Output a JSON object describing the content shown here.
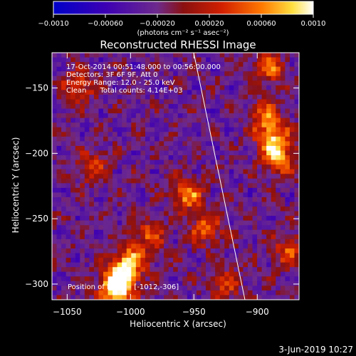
{
  "chart_data": {
    "type": "heatmap",
    "title": "Reconstructed RHESSI Image",
    "xlabel": "Heliocentric X (arcsec)",
    "ylabel": "Heliocentric Y (arcsec)",
    "xlim": [
      -1062,
      -867
    ],
    "ylim": [
      -312,
      -123
    ],
    "x_ticks": [
      -1050,
      -1000,
      -950,
      -900
    ],
    "y_ticks": [
      -150,
      -200,
      -250,
      -300
    ],
    "x_tick_labels": [
      "−1050",
      "−1000",
      "−950",
      "−900"
    ],
    "y_tick_labels": [
      "−150",
      "−200",
      "−250",
      "−300"
    ],
    "colorbar": {
      "min": -0.001,
      "max": 0.001,
      "ticks": [
        -0.001,
        -0.0006,
        -0.0002,
        0.0002,
        0.0006,
        0.001
      ],
      "tick_labels": [
        "−0.0010",
        "−0.00060",
        "−0.00020",
        "0.00020",
        "0.00060",
        "0.0010"
      ],
      "unit_label": "(photons cm⁻² s⁻¹ asec⁻²)"
    },
    "annotations": [
      "17-Oct-2014 00:51:48.000 to 00:56:00.000",
      "Detectors: 3F 6F 9F, Att 0",
      "Energy Range: 12.0 - 25.0 keV",
      "Clean      Total counts: 4.14E+03"
    ],
    "peak_label": "Position of Peak = [-1012,-306]",
    "peak": [
      -1012,
      -306
    ],
    "grid": false,
    "hot_spots": [
      {
        "x": -1008,
        "y": -296,
        "value": 0.00095
      },
      {
        "x": -1012,
        "y": -306,
        "value": 0.001
      },
      {
        "x": -1000,
        "y": -282,
        "value": 0.00085
      },
      {
        "x": -888,
        "y": -190,
        "value": 0.0009
      },
      {
        "x": -882,
        "y": -205,
        "value": 0.0008
      },
      {
        "x": -893,
        "y": -172,
        "value": 0.0007
      },
      {
        "x": -890,
        "y": -135,
        "value": 0.0007
      },
      {
        "x": -955,
        "y": -232,
        "value": 0.00085
      },
      {
        "x": -940,
        "y": -258,
        "value": 0.0007
      },
      {
        "x": -1040,
        "y": -148,
        "value": 0.0006
      },
      {
        "x": -1030,
        "y": -210,
        "value": 0.00055
      },
      {
        "x": -985,
        "y": -262,
        "value": 0.0006
      },
      {
        "x": -925,
        "y": -300,
        "value": 0.0005
      },
      {
        "x": -875,
        "y": -275,
        "value": 0.0006
      }
    ]
  },
  "footer": {
    "date": "3-Jun-2019 10:27"
  }
}
